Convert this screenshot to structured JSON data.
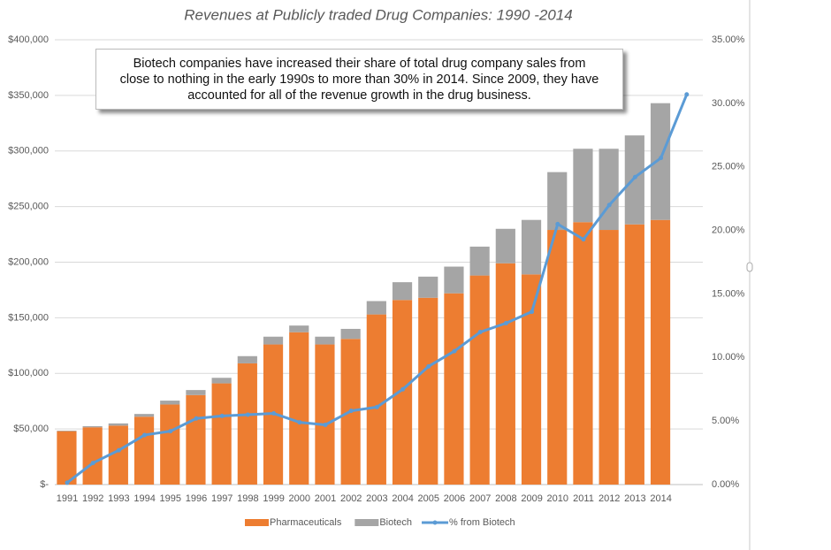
{
  "chart_data": {
    "type": "bar-line",
    "title": "Revenues at Publicly traded Drug Companies: 1990 -2014",
    "annotation": [
      "Biotech companies have increased their share of total drug company sales from",
      "close to nothing in the early 1990s to more than 30% in 2014. Since 2009, they have",
      "accounted for all of the revenue growth in the drug business."
    ],
    "categories": [
      "1991",
      "1992",
      "1993",
      "1994",
      "1995",
      "1996",
      "1997",
      "1998",
      "1999",
      "2000",
      "2001",
      "2002",
      "2003",
      "2004",
      "2005",
      "2006",
      "2007",
      "2008",
      "2009",
      "2010",
      "2011",
      "2012",
      "2013",
      "2014",
      null
    ],
    "series": [
      {
        "name": "Pharmaceuticals",
        "color": "#ed7d31",
        "stack": true,
        "values": [
          48000,
          51500,
          53000,
          61000,
          72000,
          80500,
          91000,
          109000,
          126000,
          137000,
          126000,
          131000,
          153000,
          166000,
          168000,
          172000,
          188000,
          199000,
          189000,
          229000,
          236000,
          229000,
          234000,
          238000,
          null
        ]
      },
      {
        "name": "Biotech",
        "color": "#a5a5a5",
        "stack": true,
        "values": [
          500,
          1000,
          2000,
          2500,
          3500,
          4500,
          5000,
          6500,
          7000,
          6000,
          7000,
          9000,
          12000,
          16000,
          19000,
          24000,
          26000,
          31000,
          49000,
          52000,
          66000,
          73000,
          80000,
          105000,
          null
        ]
      },
      {
        "name": "% from Biotech",
        "color": "#5b9bd5",
        "axis": "y2",
        "values": [
          0.15,
          1.7,
          2.7,
          3.9,
          4.2,
          5.2,
          5.4,
          5.5,
          5.6,
          4.9,
          4.7,
          5.8,
          6.1,
          7.5,
          9.3,
          10.5,
          12.0,
          12.7,
          13.6,
          20.5,
          19.3,
          22.0,
          24.2,
          25.7,
          30.7
        ]
      }
    ],
    "ylim": [
      0,
      400000
    ],
    "yticks": [
      {
        "value": 0,
        "label": "$-"
      },
      {
        "value": 50000,
        "label": "$50,000"
      },
      {
        "value": 100000,
        "label": "$100,000"
      },
      {
        "value": 150000,
        "label": "$150,000"
      },
      {
        "value": 200000,
        "label": "$200,000"
      },
      {
        "value": 250000,
        "label": "$250,000"
      },
      {
        "value": 300000,
        "label": "$300,000"
      },
      {
        "value": 350000,
        "label": "$350,000"
      },
      {
        "value": 400000,
        "label": "$400,000"
      }
    ],
    "y2lim": [
      0,
      35
    ],
    "y2ticks": [
      {
        "value": 0,
        "label": "0.00%"
      },
      {
        "value": 5,
        "label": "5.00%"
      },
      {
        "value": 10,
        "label": "10.00%"
      },
      {
        "value": 15,
        "label": "15.00%"
      },
      {
        "value": 20,
        "label": "20.00%"
      },
      {
        "value": 25,
        "label": "25.00%"
      },
      {
        "value": 30,
        "label": "30.00%"
      },
      {
        "value": 35,
        "label": "35.00%"
      }
    ],
    "grid": true,
    "legend": "bottom"
  }
}
